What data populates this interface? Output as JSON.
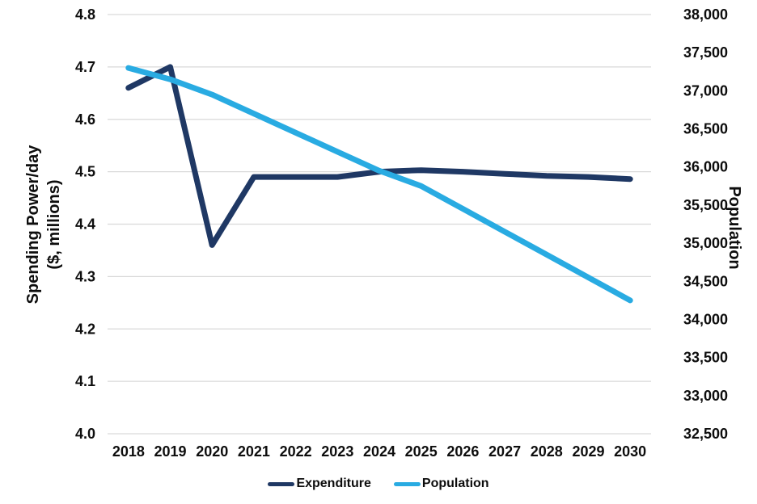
{
  "chart_data": {
    "type": "line",
    "title": "",
    "categories": [
      "2018",
      "2019",
      "2020",
      "2021",
      "2022",
      "2023",
      "2024",
      "2025",
      "2026",
      "2027",
      "2028",
      "2029",
      "2030"
    ],
    "series": [
      {
        "name": "Expenditure",
        "axis": "left",
        "color": "#1F3864",
        "values": [
          4.66,
          4.7,
          4.36,
          4.49,
          4.49,
          4.49,
          4.5,
          4.503,
          4.5,
          4.496,
          4.492,
          4.49,
          4.486
        ]
      },
      {
        "name": "Population",
        "axis": "right",
        "color": "#29ABE2",
        "values": [
          37300,
          37150,
          36950,
          36700,
          36450,
          36200,
          35950,
          35750,
          35450,
          35150,
          34850,
          34550,
          34250
        ]
      }
    ],
    "left_axis": {
      "title_line1": "Spending Power/day",
      "title_line2": "($, millions)",
      "min": 4.0,
      "max": 4.8,
      "step": 0.1,
      "tick_labels": [
        "4.8",
        "4.7",
        "4.6",
        "4.5",
        "4.4",
        "4.3",
        "4.2",
        "4.1",
        "4.0"
      ]
    },
    "right_axis": {
      "title": "Population",
      "min": 32500,
      "max": 38000,
      "step": 500,
      "tick_labels": [
        "38,000",
        "37,500",
        "37,000",
        "36,500",
        "36,000",
        "35,500",
        "35,000",
        "34,500",
        "34,000",
        "33,500",
        "33,000",
        "32,500"
      ]
    },
    "legend": {
      "position": "bottom",
      "items": [
        {
          "label": "Expenditure",
          "color": "#1F3864"
        },
        {
          "label": "Population",
          "color": "#29ABE2"
        }
      ]
    },
    "grid": true,
    "gridline_color": "#D9D9D9",
    "background_color": "#FFFFFF"
  }
}
